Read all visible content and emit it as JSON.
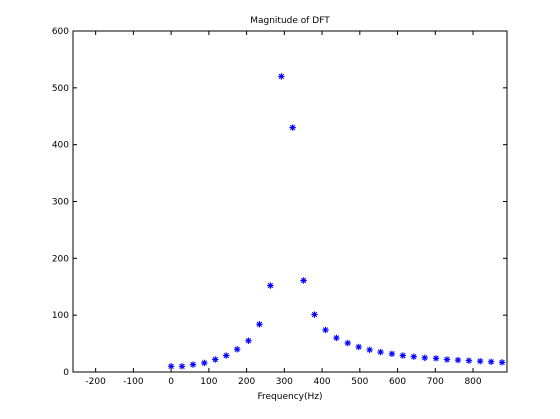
{
  "chart_data": {
    "type": "scatter",
    "title": "Magnitude of DFT",
    "xlabel": "Frequency(Hz)",
    "ylabel": "",
    "xlim": [
      -260,
      890
    ],
    "ylim": [
      0,
      600
    ],
    "xticks": [
      -200,
      -100,
      0,
      100,
      200,
      300,
      400,
      500,
      600,
      700,
      800
    ],
    "yticks": [
      0,
      100,
      200,
      300,
      400,
      500,
      600
    ],
    "grid": false,
    "marker": "*",
    "color": "#0000ff",
    "x": [
      0,
      29,
      58,
      88,
      117,
      146,
      175,
      205,
      234,
      263,
      292,
      322,
      351,
      380,
      409,
      438,
      468,
      497,
      526,
      555,
      585,
      614,
      643,
      672,
      702,
      731,
      760,
      789,
      819,
      848,
      877
    ],
    "y": [
      10,
      10,
      13,
      16,
      22,
      29,
      40,
      55,
      84,
      152,
      520,
      430,
      161,
      101,
      74,
      60,
      51,
      44,
      39,
      35,
      32,
      29,
      27,
      25,
      24,
      22,
      21,
      20,
      19,
      18,
      17
    ]
  }
}
